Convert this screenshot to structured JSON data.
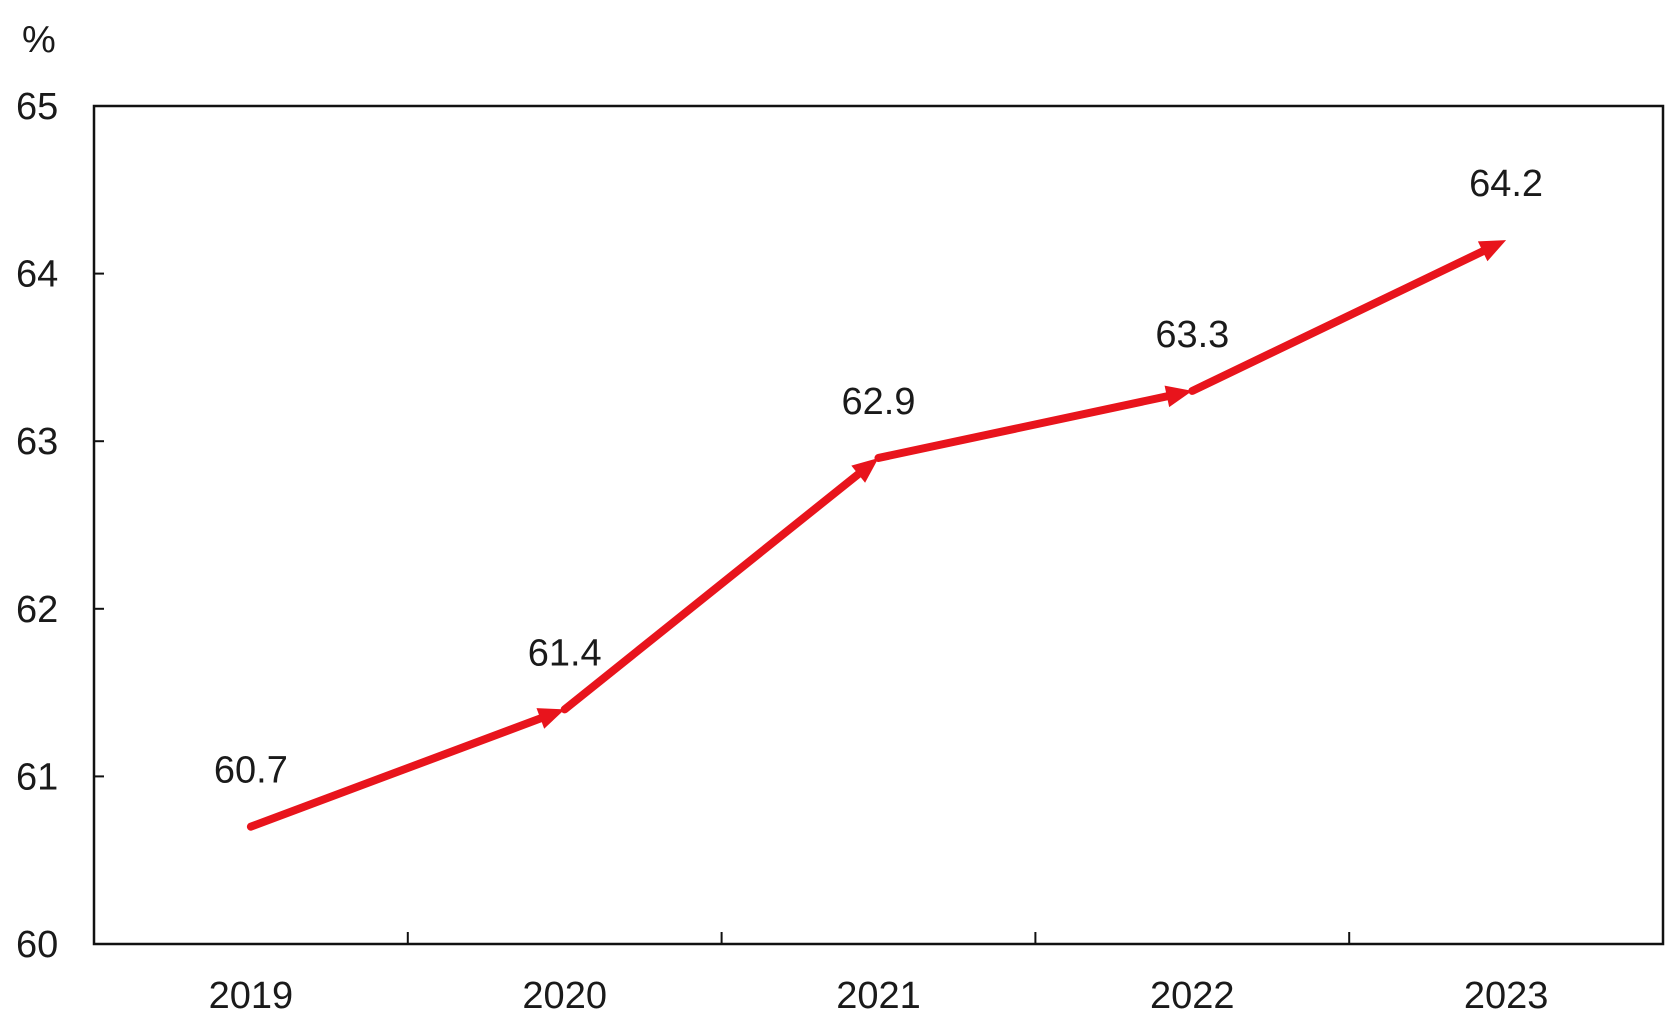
{
  "chart_data": {
    "type": "line",
    "title": "",
    "ylabel": "%",
    "xlabel": "",
    "categories": [
      "2019",
      "2020",
      "2021",
      "2022",
      "2023"
    ],
    "series": [
      {
        "values": [
          60.7,
          61.4,
          62.9,
          63.3,
          64.2
        ],
        "color": "#e8141c"
      }
    ],
    "data_labels": [
      "60.7",
      "61.4",
      "62.9",
      "63.3",
      "64.2"
    ],
    "ylim": [
      60,
      65
    ],
    "yticks": [
      "60",
      "61",
      "62",
      "63",
      "64",
      "65"
    ],
    "grid": false,
    "legend": "none"
  }
}
